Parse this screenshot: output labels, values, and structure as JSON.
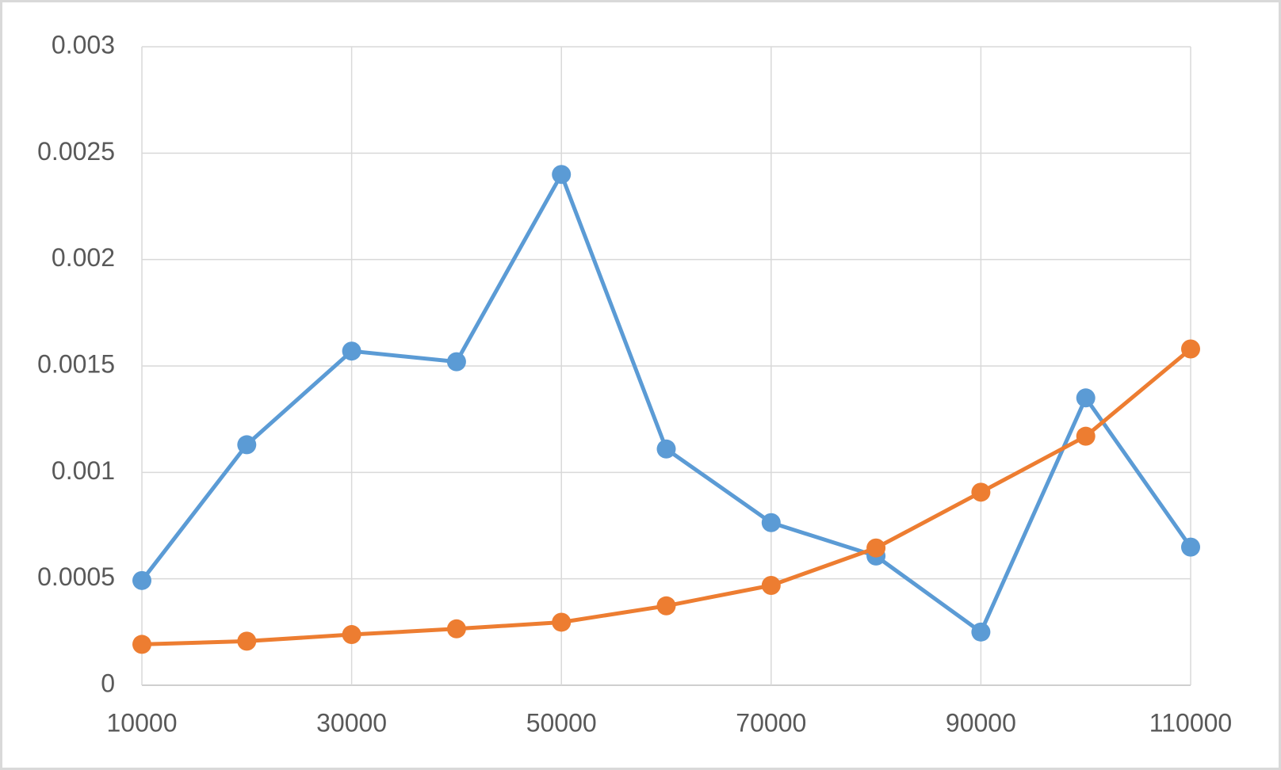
{
  "chart_data": {
    "type": "line",
    "x": [
      10000,
      20000,
      30000,
      40000,
      50000,
      60000,
      70000,
      80000,
      90000,
      100000,
      110000
    ],
    "series": [
      {
        "color": "#5b9bd5",
        "values": [
          0.000492,
          0.00113,
          0.00157,
          0.00152,
          0.0024,
          0.00111,
          0.000764,
          0.000607,
          0.00025,
          0.00135,
          0.000649
        ]
      },
      {
        "color": "#ed7d31",
        "values": [
          0.000192,
          0.000207,
          0.000238,
          0.000265,
          0.000296,
          0.000373,
          0.000469,
          0.000645,
          0.000907,
          0.00117,
          0.00158
        ]
      }
    ],
    "xlim": [
      10000,
      110000
    ],
    "xticks": [
      10000,
      30000,
      50000,
      70000,
      90000,
      110000
    ],
    "ylim": [
      0,
      0.003
    ],
    "yticks": [
      0,
      0.0005,
      0.001,
      0.0015,
      0.002,
      0.0025,
      0.003
    ],
    "grid": true
  }
}
